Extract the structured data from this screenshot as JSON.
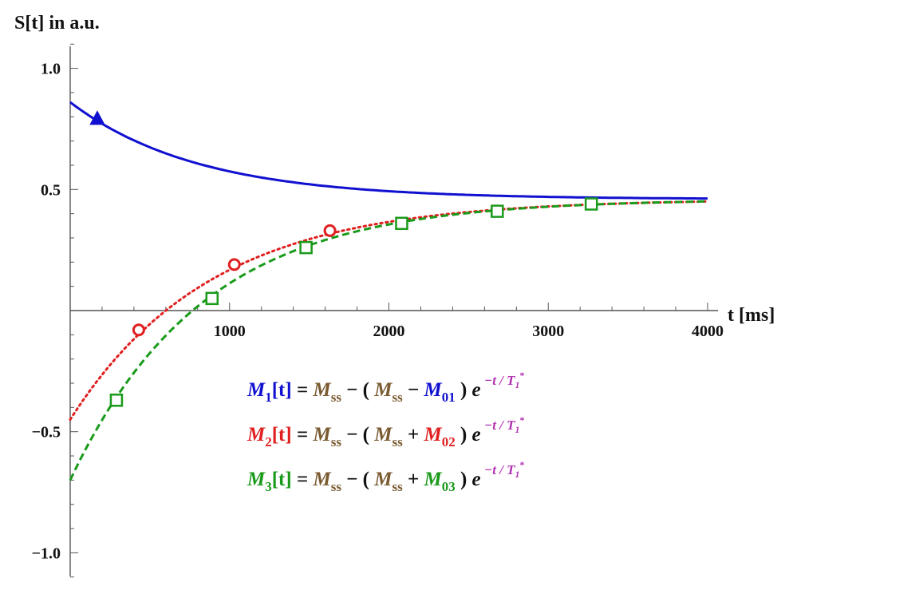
{
  "chart_data": {
    "type": "line",
    "ylabel": "S[t] in a.u.",
    "xlabel": "t [ms]",
    "xlim": [
      0,
      4000
    ],
    "ylim": [
      -1.1,
      1.1
    ],
    "x_ticks": [
      1000,
      2000,
      3000,
      4000
    ],
    "y_ticks": [
      -1.0,
      -0.5,
      0.5,
      1.0
    ],
    "x_tick_labels": [
      "1000",
      "2000",
      "3000",
      "4000"
    ],
    "y_tick_labels": [
      "−1.0",
      "−0.5",
      "0.5",
      "1.0"
    ],
    "grid": false,
    "series": [
      {
        "name": "M1",
        "color": "#1010d0",
        "line_style": "solid",
        "marker": "triangle",
        "curve": {
          "M0": 0.86,
          "Mss": 0.46,
          "T": 800
        },
        "points": [
          [
            170,
            0.79
          ]
        ]
      },
      {
        "name": "M2",
        "color": "#e02020",
        "line_style": "dotted",
        "marker": "circle",
        "curve": {
          "M0": -0.45,
          "Mss": 0.46,
          "T": 880
        },
        "points": [
          [
            430,
            -0.08
          ],
          [
            1030,
            0.19
          ],
          [
            1630,
            0.33
          ]
        ]
      },
      {
        "name": "M3",
        "color": "#1a9a1a",
        "line_style": "dashed",
        "marker": "square",
        "curve": {
          "M0": -0.7,
          "Mss": 0.46,
          "T": 830
        },
        "points": [
          [
            290,
            -0.37
          ],
          [
            890,
            0.05
          ],
          [
            1480,
            0.26
          ],
          [
            2080,
            0.36
          ],
          [
            2680,
            0.41
          ],
          [
            3270,
            0.44
          ]
        ]
      }
    ]
  },
  "equations": [
    {
      "lhs_sym": "M",
      "lhs_sub": "1",
      "arg": "[t]",
      "eq": " = ",
      "mss": "M",
      "mss_sub": "ss",
      "mid": " − ( ",
      "mss2": "M",
      "mss2_sub": "ss",
      "op": " − ",
      "m0": "M",
      "m0_sub": "01",
      "close": " ) ",
      "e": "e",
      "exp": "−t / T",
      "exp_sub": "1",
      "exp_star": "*",
      "color": "#1010d0"
    },
    {
      "lhs_sym": "M",
      "lhs_sub": "2",
      "arg": "[t]",
      "eq": " = ",
      "mss": "M",
      "mss_sub": "ss",
      "mid": " − ( ",
      "mss2": "M",
      "mss2_sub": "ss",
      "op": " + ",
      "m0": "M",
      "m0_sub": "02",
      "close": " ) ",
      "e": "e",
      "exp": "−t / T",
      "exp_sub": "1",
      "exp_star": "*",
      "color": "#e02020"
    },
    {
      "lhs_sym": "M",
      "lhs_sub": "3",
      "arg": "[t]",
      "eq": " = ",
      "mss": "M",
      "mss_sub": "ss",
      "mid": " − ( ",
      "mss2": "M",
      "mss2_sub": "ss",
      "op": " + ",
      "m0": "M",
      "m0_sub": "03",
      "close": " ) ",
      "e": "e",
      "exp": "−t / T",
      "exp_sub": "1",
      "exp_star": "*",
      "color": "#1a9a1a"
    }
  ],
  "colors": {
    "mss": "#7a5a30",
    "exponent": "#b030b0",
    "text": "#111111"
  }
}
